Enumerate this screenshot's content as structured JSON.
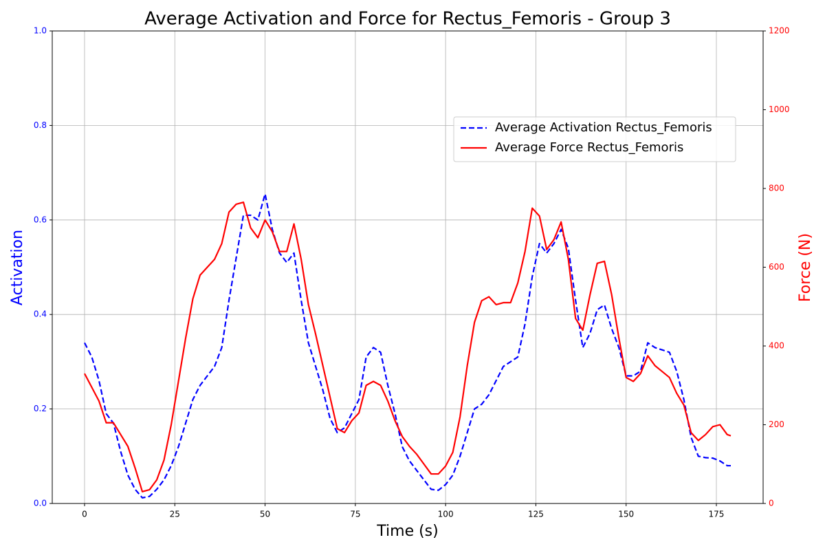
{
  "chart_data": {
    "type": "line",
    "title": "Average Activation and Force for Rectus_Femoris - Group 3",
    "xlabel": "Time (s)",
    "ylabel": "Activation",
    "y2label": "Force (N)",
    "x": [
      0,
      2,
      4,
      6,
      8,
      10,
      12,
      14,
      16,
      18,
      20,
      22,
      24,
      26,
      28,
      30,
      32,
      34,
      36,
      38,
      40,
      42,
      44,
      46,
      48,
      50,
      52,
      54,
      56,
      58,
      60,
      62,
      64,
      66,
      68,
      70,
      72,
      74,
      76,
      78,
      80,
      82,
      84,
      86,
      88,
      90,
      92,
      94,
      96,
      98,
      100,
      102,
      104,
      106,
      108,
      110,
      112,
      114,
      116,
      118,
      120,
      122,
      124,
      126,
      128,
      130,
      132,
      134,
      136,
      138,
      140,
      142,
      144,
      146,
      148,
      150,
      152,
      154,
      156,
      158,
      160,
      162,
      164,
      166,
      168,
      170,
      172,
      174,
      176,
      178,
      179
    ],
    "series": [
      {
        "name": "Average Activation Rectus_Femoris",
        "color": "#0000ff",
        "dashed": true,
        "values": [
          0.34,
          0.31,
          0.26,
          0.19,
          0.17,
          0.11,
          0.06,
          0.03,
          0.012,
          0.015,
          0.03,
          0.05,
          0.08,
          0.12,
          0.17,
          0.22,
          0.25,
          0.27,
          0.29,
          0.33,
          0.43,
          0.52,
          0.61,
          0.61,
          0.6,
          0.655,
          0.58,
          0.53,
          0.51,
          0.53,
          0.43,
          0.34,
          0.29,
          0.24,
          0.18,
          0.15,
          0.16,
          0.19,
          0.22,
          0.31,
          0.33,
          0.32,
          0.25,
          0.19,
          0.12,
          0.09,
          0.07,
          0.05,
          0.03,
          0.028,
          0.04,
          0.06,
          0.1,
          0.15,
          0.2,
          0.21,
          0.23,
          0.26,
          0.29,
          0.3,
          0.31,
          0.38,
          0.48,
          0.55,
          0.53,
          0.55,
          0.58,
          0.54,
          0.43,
          0.33,
          0.36,
          0.41,
          0.42,
          0.37,
          0.33,
          0.27,
          0.27,
          0.28,
          0.34,
          0.33,
          0.325,
          0.32,
          0.28,
          0.22,
          0.14,
          0.1,
          0.097,
          0.096,
          0.09,
          0.08,
          0.08
        ]
      },
      {
        "name": "Average Force Rectus_Femoris",
        "color": "#ff0000",
        "dashed": false,
        "axis": "y2",
        "values": [
          330,
          295,
          260,
          205,
          205,
          175,
          145,
          90,
          30,
          35,
          60,
          110,
          200,
          310,
          420,
          520,
          580,
          600,
          620,
          660,
          740,
          760,
          765,
          700,
          675,
          720,
          690,
          640,
          640,
          710,
          620,
          505,
          430,
          350,
          270,
          190,
          180,
          210,
          230,
          300,
          310,
          300,
          260,
          210,
          170,
          145,
          125,
          100,
          75,
          75,
          95,
          130,
          220,
          350,
          460,
          515,
          525,
          505,
          510,
          510,
          560,
          640,
          750,
          730,
          645,
          670,
          715,
          620,
          470,
          440,
          530,
          610,
          615,
          530,
          420,
          320,
          310,
          330,
          375,
          350,
          335,
          320,
          280,
          250,
          180,
          160,
          175,
          195,
          200,
          175,
          172
        ]
      }
    ],
    "xlim": [
      -8.95,
      187.95
    ],
    "xticks": [
      0,
      25,
      50,
      75,
      100,
      125,
      150,
      175
    ],
    "ylim": [
      0,
      1
    ],
    "yticks": [
      {
        "value": 0,
        "label": "0.0"
      },
      0.2,
      0.4,
      0.6,
      0.8,
      {
        "value": 1,
        "label": "1.0"
      }
    ],
    "y2lim": [
      0,
      1200
    ],
    "y2ticks": [
      0,
      200,
      400,
      600,
      800,
      1000,
      1200
    ],
    "grid": true,
    "legend": "center right"
  }
}
